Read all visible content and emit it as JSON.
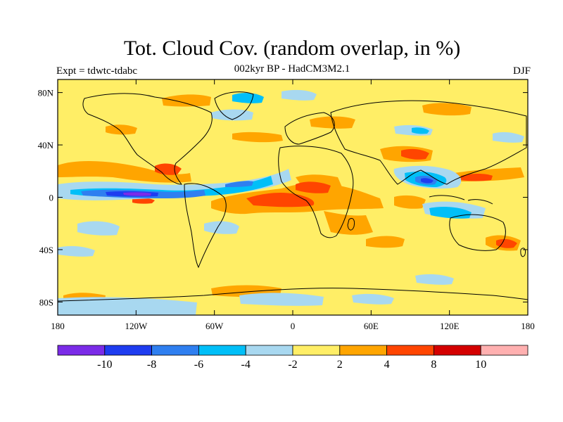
{
  "title": "Tot. Cloud Cov. (random overlap, in %)",
  "subtitle": "002kyr BP - HadCM3M2.1",
  "expt": "Expt = tdwtc-tdabc",
  "season": "DJF",
  "colors": {
    "background": "#FFEE66",
    "land_line": "#000000"
  },
  "axes": {
    "lon_ticks": [
      "180",
      "120W",
      "60W",
      "0",
      "60E",
      "120E",
      "180"
    ],
    "lat_ticks": [
      "80N",
      "40N",
      "0",
      "40S",
      "80S"
    ]
  },
  "colorbar": {
    "colors": [
      "#7B2BE8",
      "#1E3CF0",
      "#2F7FF0",
      "#00BFF8",
      "#A8D8F0",
      "#FFEE66",
      "#FFA500",
      "#FF4500",
      "#D40000",
      "#FFB0B0"
    ],
    "labels": [
      "-10",
      "-8",
      "-6",
      "-4",
      "-2",
      "2",
      "4",
      "8",
      "10"
    ]
  }
}
